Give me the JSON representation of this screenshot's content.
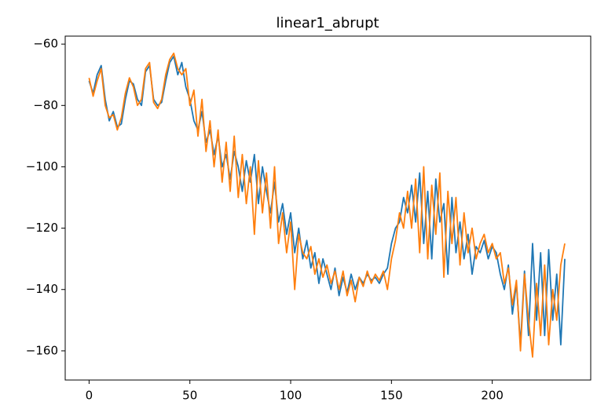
{
  "chart_data": {
    "type": "line",
    "title": "linear1_abrupt",
    "x": [
      0,
      2,
      4,
      6,
      8,
      10,
      12,
      14,
      16,
      18,
      20,
      22,
      24,
      26,
      28,
      30,
      32,
      34,
      36,
      38,
      40,
      42,
      44,
      46,
      48,
      50,
      52,
      54,
      56,
      58,
      60,
      62,
      64,
      66,
      68,
      70,
      72,
      74,
      76,
      78,
      80,
      82,
      84,
      86,
      88,
      90,
      92,
      94,
      96,
      98,
      100,
      102,
      104,
      106,
      108,
      110,
      112,
      114,
      116,
      118,
      120,
      122,
      124,
      126,
      128,
      130,
      132,
      134,
      136,
      138,
      140,
      142,
      144,
      146,
      148,
      150,
      152,
      154,
      156,
      158,
      160,
      162,
      164,
      166,
      168,
      170,
      172,
      174,
      176,
      178,
      180,
      182,
      184,
      186,
      188,
      190,
      192,
      194,
      196,
      198,
      200,
      202,
      204,
      206,
      208,
      210,
      212,
      214,
      216,
      218,
      220,
      222,
      224,
      226,
      228,
      230,
      232,
      234,
      236
    ],
    "series": [
      {
        "color": "#1f77b4",
        "values": [
          -72,
          -76,
          -70,
          -67,
          -78,
          -85,
          -82,
          -87,
          -86,
          -78,
          -72,
          -73,
          -78,
          -80,
          -69,
          -67,
          -78,
          -80,
          -79,
          -72,
          -66,
          -64,
          -70,
          -66,
          -74,
          -78,
          -85,
          -88,
          -82,
          -92,
          -88,
          -96,
          -90,
          -100,
          -96,
          -104,
          -95,
          -100,
          -108,
          -98,
          -105,
          -96,
          -112,
          -100,
          -108,
          -115,
          -105,
          -118,
          -112,
          -122,
          -115,
          -128,
          -120,
          -130,
          -124,
          -133,
          -128,
          -138,
          -130,
          -135,
          -140,
          -133,
          -142,
          -136,
          -141,
          -135,
          -140,
          -136,
          -138,
          -135,
          -137,
          -136,
          -138,
          -135,
          -133,
          -125,
          -120,
          -118,
          -110,
          -115,
          -106,
          -118,
          -102,
          -125,
          -108,
          -130,
          -104,
          -118,
          -112,
          -135,
          -110,
          -128,
          -118,
          -130,
          -122,
          -135,
          -126,
          -128,
          -124,
          -130,
          -126,
          -128,
          -135,
          -140,
          -132,
          -148,
          -138,
          -158,
          -134,
          -155,
          -125,
          -150,
          -128,
          -155,
          -127,
          -150,
          -135,
          -158,
          -130
        ]
      },
      {
        "color": "#ff7f0e",
        "values": [
          -71,
          -77,
          -72,
          -68,
          -80,
          -84,
          -83,
          -88,
          -84,
          -76,
          -71,
          -74,
          -80,
          -78,
          -68,
          -66,
          -79,
          -81,
          -78,
          -70,
          -65,
          -63,
          -68,
          -70,
          -68,
          -80,
          -75,
          -90,
          -78,
          -95,
          -85,
          -100,
          -88,
          -105,
          -92,
          -108,
          -90,
          -110,
          -96,
          -112,
          -100,
          -122,
          -98,
          -115,
          -102,
          -120,
          -100,
          -125,
          -115,
          -128,
          -118,
          -140,
          -122,
          -128,
          -130,
          -126,
          -135,
          -130,
          -136,
          -132,
          -138,
          -134,
          -140,
          -134,
          -142,
          -137,
          -144,
          -136,
          -139,
          -134,
          -138,
          -135,
          -137,
          -134,
          -140,
          -130,
          -124,
          -115,
          -120,
          -108,
          -120,
          -104,
          -128,
          -100,
          -130,
          -106,
          -122,
          -102,
          -136,
          -108,
          -125,
          -110,
          -132,
          -115,
          -128,
          -120,
          -130,
          -125,
          -122,
          -128,
          -125,
          -130,
          -128,
          -138,
          -133,
          -145,
          -137,
          -160,
          -135,
          -150,
          -162,
          -138,
          -155,
          -132,
          -158,
          -140,
          -150,
          -132,
          -125
        ]
      }
    ],
    "xlim": [
      -11.85,
      248.85
    ],
    "xticks": [
      0,
      50,
      100,
      150,
      200
    ],
    "ylim": [
      -169.5,
      -57.4
    ],
    "yticks": [
      {
        "value": -160,
        "label": "−160"
      },
      {
        "value": -140,
        "label": "−140"
      },
      {
        "value": -120,
        "label": "−120"
      },
      {
        "value": -100,
        "label": "−100"
      },
      {
        "value": -80,
        "label": "−80"
      },
      {
        "value": -60,
        "label": "−60"
      }
    ]
  }
}
